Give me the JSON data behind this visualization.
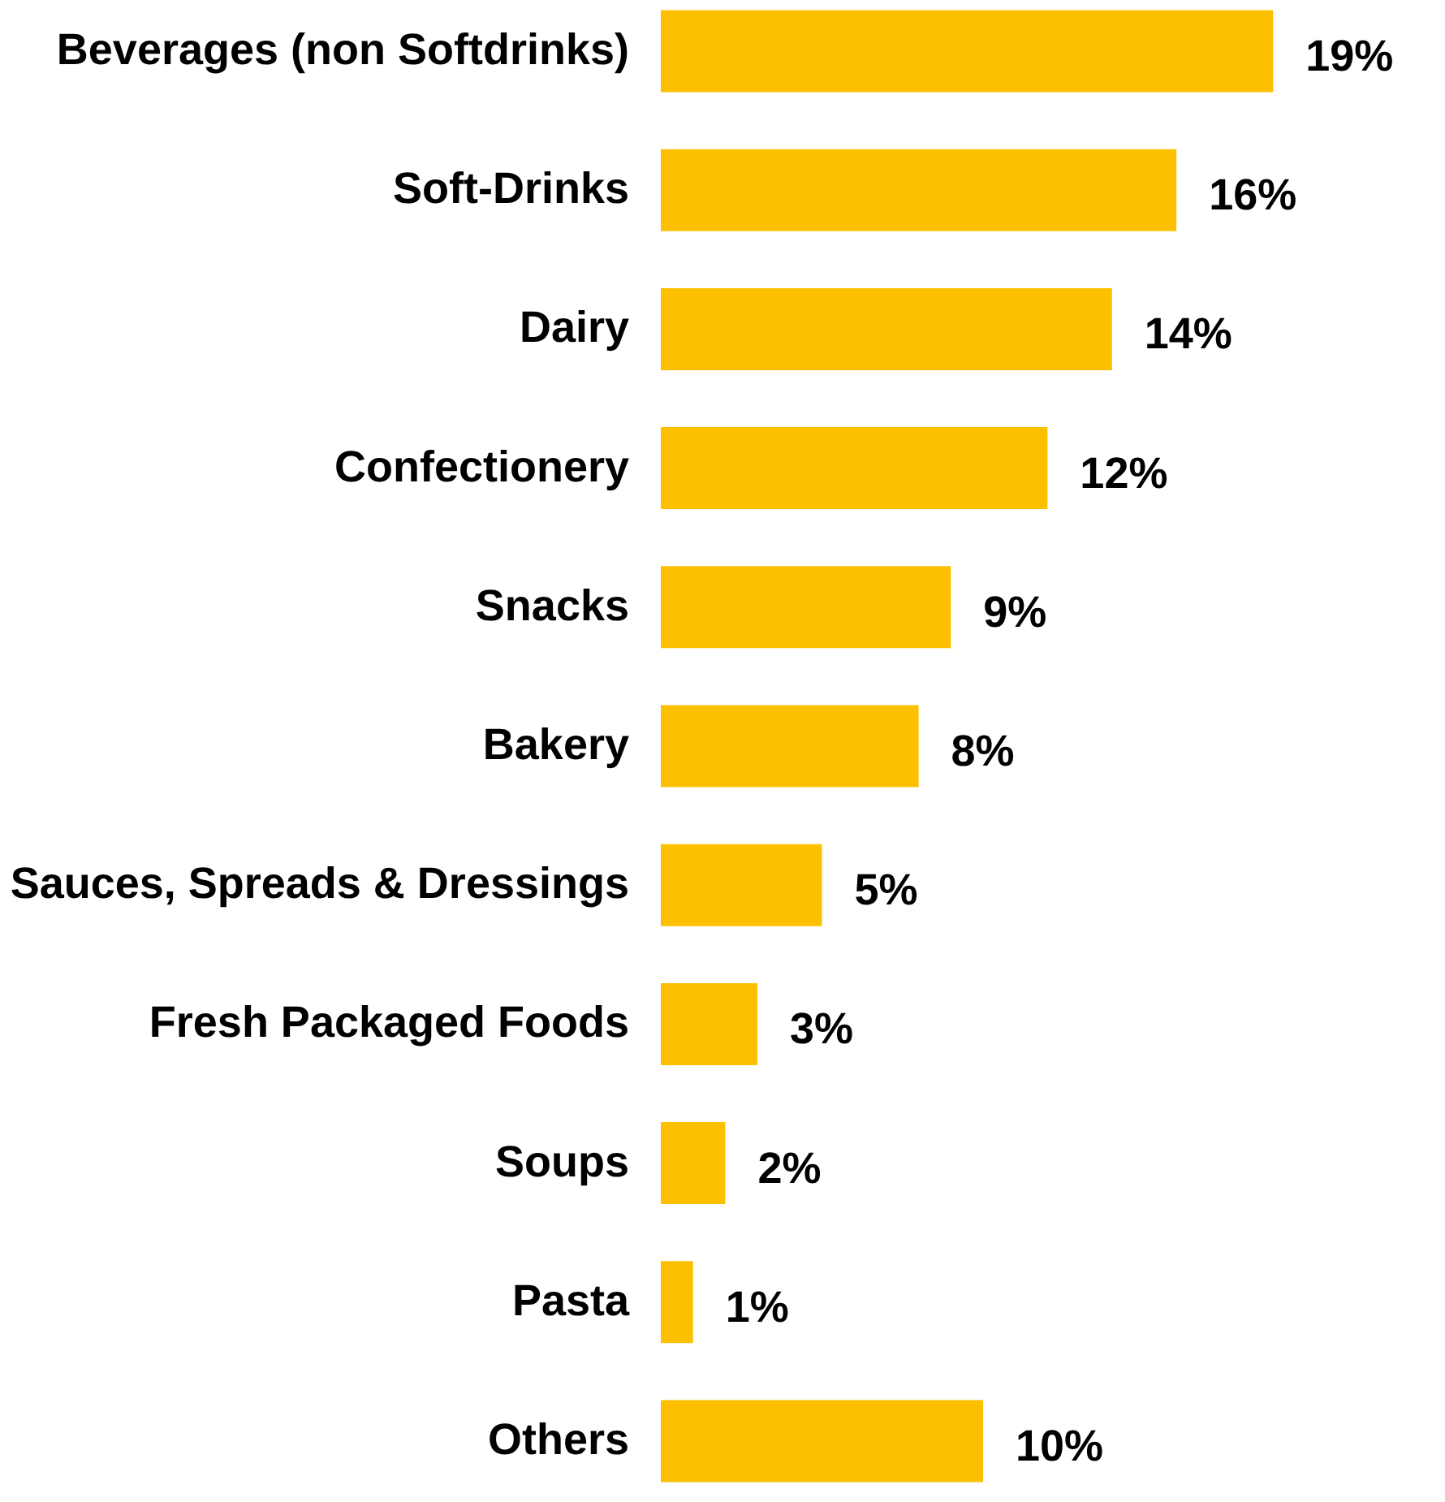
{
  "chart_data": {
    "type": "bar",
    "orientation": "horizontal",
    "categories": [
      "Beverages (non Softdrinks)",
      "Soft-Drinks",
      "Dairy",
      "Confectionery",
      "Snacks",
      "Bakery",
      "Sauces, Spreads & Dressings",
      "Fresh Packaged Foods",
      "Soups",
      "Pasta",
      "Others"
    ],
    "values": [
      19,
      16,
      14,
      12,
      9,
      8,
      5,
      3,
      2,
      1,
      10
    ],
    "value_labels": [
      "19%",
      "16%",
      "14%",
      "12%",
      "9%",
      "8%",
      "5%",
      "3%",
      "2%",
      "1%",
      "10%"
    ],
    "color": "#fcc000"
  }
}
